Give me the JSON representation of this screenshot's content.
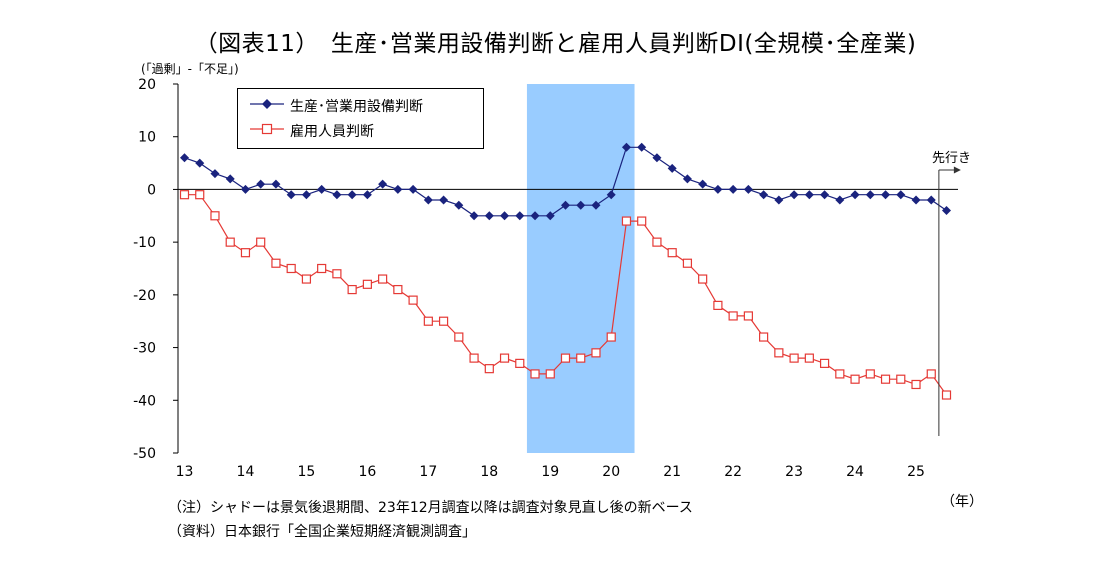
{
  "title": "（図表11）　生産･営業用設備判断と雇用人員判断DI(全規模･全産業)",
  "y_unit_label": "(「過剰」-「不足」)",
  "x_unit_label": "（年）",
  "forecast_label": "先行き",
  "notes": [
    "（注）シャドーは景気後退期間、23年12月調査以降は調査対象見直し後の新ベース",
    "（資料）日本銀行「全国企業短期経済観測調査」"
  ],
  "colors": {
    "series1": "#1a237e",
    "series2": "#e53935",
    "shade": "#99ccff",
    "axis": "#000000"
  },
  "chart_data": {
    "type": "line",
    "title": "（図表11）　生産･営業用設備判断と雇用人員判断DI(全規模･全産業)",
    "xlabel": "（年）",
    "ylabel": "(「過剰」-「不足」)",
    "ylim": [
      -50,
      20
    ],
    "yticks": [
      20,
      10,
      0,
      -10,
      -20,
      -30,
      -40,
      -50
    ],
    "x_ticks": [
      "13",
      "14",
      "15",
      "16",
      "17",
      "18",
      "19",
      "20",
      "21",
      "22",
      "23",
      "24",
      "25"
    ],
    "x_start": "2013Q1",
    "recession_shade": {
      "from": "2018Q4",
      "to": "2020Q2"
    },
    "forecast_at": "2025Q3",
    "legend_position": "top-left",
    "grid": false,
    "series": [
      {
        "name": "生産･営業用設備判断",
        "marker": "filled-diamond",
        "values": [
          6,
          5,
          3,
          2,
          0,
          1,
          1,
          -1,
          -1,
          0,
          -1,
          -1,
          -1,
          1,
          0,
          0,
          -2,
          -2,
          -3,
          -5,
          -5,
          -5,
          -5,
          -5,
          -5,
          -3,
          -3,
          -3,
          -1,
          8,
          8,
          6,
          4,
          2,
          1,
          0,
          0,
          0,
          -1,
          -2,
          -1,
          -1,
          -1,
          -2,
          -1,
          -1,
          -1,
          -1,
          -2,
          -2,
          -4
        ]
      },
      {
        "name": "雇用人員判断",
        "marker": "open-square",
        "values": [
          -1,
          -1,
          -5,
          -10,
          -12,
          -10,
          -14,
          -15,
          -17,
          -15,
          -16,
          -19,
          -18,
          -17,
          -19,
          -21,
          -25,
          -25,
          -28,
          -32,
          -34,
          -32,
          -33,
          -35,
          -35,
          -32,
          -32,
          -31,
          -28,
          -6,
          -6,
          -10,
          -12,
          -14,
          -17,
          -22,
          -24,
          -24,
          -28,
          -31,
          -32,
          -32,
          -33,
          -35,
          -36,
          -35,
          -36,
          -36,
          -37,
          -35,
          -39
        ]
      }
    ]
  }
}
